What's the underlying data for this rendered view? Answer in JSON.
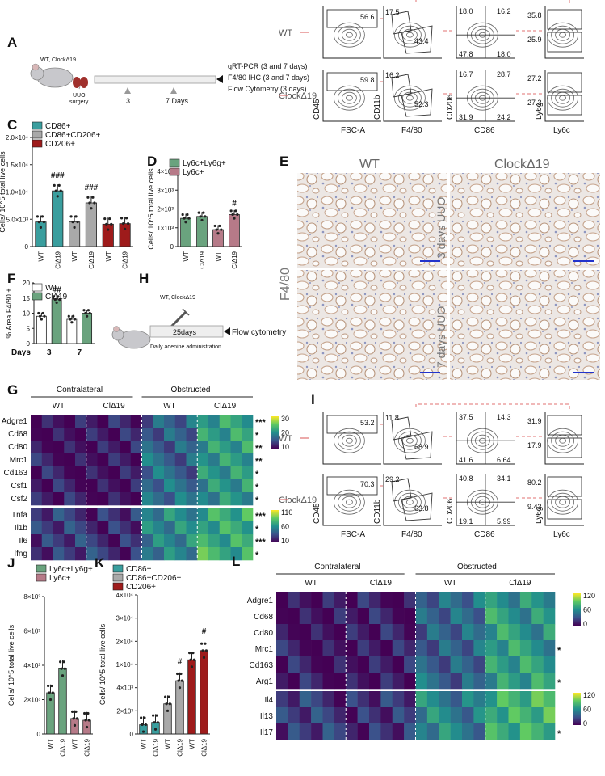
{
  "panels": {
    "A": "A",
    "B": "B",
    "C": "C",
    "D": "D",
    "E": "E",
    "F": "F",
    "G": "G",
    "H": "H",
    "I": "I",
    "J": "J",
    "K": "K",
    "L": "L"
  },
  "colors": {
    "teal": "#3a9e9e",
    "grey": "#a9a9a9",
    "darkred": "#9e1b1b",
    "sage": "#6aa37e",
    "mauve": "#b67a88",
    "white": "#ffffff",
    "arrow": "#e07070"
  },
  "panelA": {
    "mouse_label": "WT, ClockΔ19",
    "surgery": "UUO\nsurgery",
    "tick1": "3",
    "tick2": "7 Days",
    "lines": [
      "qRT-PCR (3 and 7 days)",
      "F4/80 IHC (3 and 7 days)",
      "Flow Cytometry (3 days)"
    ]
  },
  "panelB": {
    "row_wt": "WT",
    "row_clock": "ClockΔ19",
    "x_axes": [
      "FSC-A",
      "F4/80",
      "CD86",
      "Ly6c"
    ],
    "y_axes": [
      "CD45",
      "CD11b",
      "CD206",
      "Ly6g"
    ],
    "wt_values": {
      "gate1": "56.6",
      "cd11b": "17.5",
      "f480": "43.4",
      "q_tl": "18.0",
      "q_tr": "16.2",
      "q_bl": "47.8",
      "q_br": "18.0",
      "ly6g": "35.8",
      "ly6c": "25.9"
    },
    "clock_values": {
      "gate1": "59.8",
      "cd11b": "16.2",
      "f480": "52.3",
      "q_tl": "16.7",
      "q_tr": "28.7",
      "q_bl": "31.9",
      "q_br": "24.2",
      "ly6g": "27.2",
      "ly6c": "27.3"
    }
  },
  "panelE": {
    "cols": [
      "WT",
      "ClockΔ19"
    ],
    "rows": [
      "3 days UUO",
      "7 days UUO"
    ],
    "side": "F4/80"
  },
  "panelH": {
    "mouse_label": "WT, ClockΔ19",
    "box": "25days",
    "end": "Flow cytometry",
    "sub": "Daily adenine administration"
  },
  "panelI": {
    "row_wt": "WT",
    "row_clock": "ClockΔ19",
    "x_axes": [
      "FSC-A",
      "F4/80",
      "CD86",
      "Ly6c"
    ],
    "y_axes": [
      "CD45",
      "CD11b",
      "CD206",
      "Ly6g"
    ],
    "wt_values": {
      "gate1": "53.2",
      "cd11b": "11.8",
      "f480": "68.9",
      "q_tl": "37.5",
      "q_tr": "14.3",
      "q_bl": "41.6",
      "q_br": "6.64",
      "ly6g": "31.9",
      "ly6c": "17.9"
    },
    "clock_values": {
      "gate1": "70.3",
      "cd11b": "29.2",
      "f480": "63.8",
      "q_tl": "40.8",
      "q_tr": "34.1",
      "q_bl": "19.1",
      "q_br": "5.99",
      "ly6g": "80.2",
      "ly6c": "9.43"
    }
  },
  "chart_data": [
    {
      "id": "C",
      "type": "bar",
      "ylabel": "Cells/ 10^5 total live cells",
      "yticks": [
        "0",
        "5.0×10³",
        "1.0×10⁴",
        "1.5×10⁴",
        "2.0×10⁴"
      ],
      "ylim": [
        0,
        20000
      ],
      "legend": [
        "CD86+",
        "CD86+CD206+",
        "CD206+"
      ],
      "categories": [
        "WT",
        "ClΔ19",
        "WT",
        "ClΔ19",
        "WT",
        "ClΔ19"
      ],
      "values": [
        4500,
        10200,
        4500,
        8000,
        4100,
        4200
      ],
      "colors": [
        "#3a9e9e",
        "#3a9e9e",
        "#a9a9a9",
        "#a9a9a9",
        "#9e1b1b",
        "#9e1b1b"
      ],
      "annotations": [
        {
          "over": 1,
          "text": "###"
        },
        {
          "over": 3,
          "text": "###"
        }
      ]
    },
    {
      "id": "D",
      "type": "bar",
      "ylabel": "Cells/ 10^5 total live cells",
      "yticks": [
        "0",
        "1×10³",
        "2×10³",
        "3×10³",
        "4×10³"
      ],
      "ylim": [
        0,
        4000
      ],
      "legend": [
        "Ly6c+Ly6g+",
        "Ly6c+"
      ],
      "categories": [
        "WT",
        "ClΔ19",
        "WT",
        "ClΔ19"
      ],
      "values": [
        1500,
        1600,
        900,
        1700
      ],
      "colors": [
        "#6aa37e",
        "#6aa37e",
        "#b67a88",
        "#b67a88"
      ],
      "annotations": [
        {
          "over": 3,
          "text": "#"
        }
      ]
    },
    {
      "id": "F",
      "type": "bar",
      "ylabel": "% Area F4/80 +",
      "yticks": [
        "0",
        "5",
        "10",
        "15",
        "20"
      ],
      "ylim": [
        0,
        20
      ],
      "legend": [
        "WT",
        "ClΔ19"
      ],
      "xlabel": "Days",
      "groups": [
        "3",
        "7"
      ],
      "values": [
        9,
        14.5,
        8,
        10
      ],
      "colors": [
        "#ffffff",
        "#6aa37e",
        "#ffffff",
        "#6aa37e"
      ],
      "annotations": [
        {
          "over": 1,
          "text": "##"
        }
      ]
    },
    {
      "id": "G",
      "type": "heatmap",
      "header_left": "Contralateral",
      "header_right": "Obstructed",
      "subheaders": [
        "WT",
        "ClΔ19",
        "WT",
        "ClΔ19"
      ],
      "rows_top": [
        "Adgre1",
        "Cd68",
        "Cd80",
        "Mrc1",
        "Cd163",
        "Csf1",
        "Csf2"
      ],
      "rows_bottom": [
        "Tnfa",
        "Il1b",
        "Il6",
        "Ifng"
      ],
      "sig_top": [
        "***",
        "*",
        "**",
        "**",
        "*",
        "*",
        "*"
      ],
      "sig_bottom": [
        "***",
        "*",
        "***",
        "*"
      ],
      "scale_top": [
        "30",
        "20",
        "10"
      ],
      "scale_bottom": [
        "110",
        "60",
        "10"
      ]
    },
    {
      "id": "J",
      "type": "bar",
      "ylabel": "Cells/ 10^5 total live cells",
      "yticks": [
        "0",
        "2×10³",
        "4×10³",
        "6×10³",
        "8×10³"
      ],
      "ylim": [
        0,
        8000
      ],
      "legend": [
        "Ly6c+Ly6g+",
        "Ly6c+"
      ],
      "categories": [
        "WT",
        "ClΔ19",
        "WT",
        "ClΔ19"
      ],
      "values": [
        2400,
        3800,
        900,
        800
      ],
      "colors": [
        "#6aa37e",
        "#6aa37e",
        "#b67a88",
        "#b67a88"
      ]
    },
    {
      "id": "K",
      "type": "bar",
      "ylabel": "Cells/ 10^5 total live cells",
      "yticks": [
        "0",
        "2×10³",
        "4×10³",
        "1×10⁴",
        "2×10⁴",
        "3×10⁴",
        "4×10⁴"
      ],
      "legend": [
        "CD86+",
        "CD86+CD206+",
        "CD206+"
      ],
      "categories": [
        "WT",
        "ClΔ19",
        "WT",
        "ClΔ19",
        "WT",
        "ClΔ19"
      ],
      "values": [
        2000,
        2500,
        6500,
        11500,
        16000,
        18000
      ],
      "colors": [
        "#3a9e9e",
        "#3a9e9e",
        "#a9a9a9",
        "#a9a9a9",
        "#9e1b1b",
        "#9e1b1b"
      ],
      "annotations": [
        {
          "over": 3,
          "text": "#"
        },
        {
          "over": 5,
          "text": "#"
        }
      ]
    },
    {
      "id": "L",
      "type": "heatmap",
      "header_left": "Contralateral",
      "header_right": "Obstructed",
      "subheaders": [
        "WT",
        "ClΔ19",
        "WT",
        "ClΔ19"
      ],
      "rows_top": [
        "Adgre1",
        "Cd68",
        "Cd80",
        "Mrc1",
        "Cd163",
        "Arg1"
      ],
      "rows_bottom": [
        "Il4",
        "Il13",
        "Il17"
      ],
      "sig_top": [
        "",
        "",
        "",
        "*",
        "",
        "*"
      ],
      "sig_bottom": [
        "",
        "",
        "*"
      ],
      "scale_top": [
        "120",
        "60",
        "0"
      ],
      "scale_bottom": [
        "120",
        "60",
        "0"
      ]
    }
  ]
}
